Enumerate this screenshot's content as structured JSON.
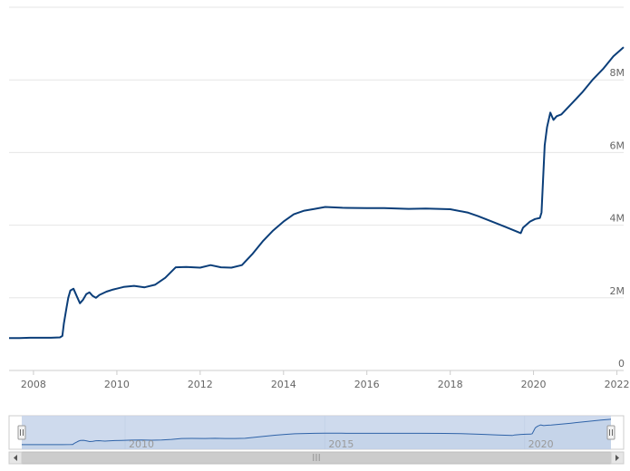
{
  "chart_data": {
    "type": "line",
    "title": "",
    "xlabel": "",
    "ylabel": "",
    "xlim": [
      "2007-06-01",
      "2022-03-01"
    ],
    "ylim": [
      0,
      10000000
    ],
    "y_ticks": [
      0,
      2000000,
      4000000,
      6000000,
      8000000
    ],
    "y_tick_labels": [
      "0",
      "2M",
      "4M",
      "6M",
      "8M"
    ],
    "x_ticks": [
      "2008-01-01",
      "2010-01-01",
      "2012-01-01",
      "2014-01-01",
      "2016-01-01",
      "2018-01-01",
      "2020-01-01",
      "2022-01-01"
    ],
    "x_tick_labels": [
      "2008",
      "2010",
      "2012",
      "2014",
      "2016",
      "2018",
      "2020",
      "2022"
    ],
    "y_axis_position": "right",
    "grid": true,
    "line_color": "#0b3e79",
    "series": [
      {
        "x": [
          "2007-06-01",
          "2007-09-01",
          "2007-12-01",
          "2008-03-01",
          "2008-06-01",
          "2008-08-20",
          "2008-09-10",
          "2008-09-24",
          "2008-10-15",
          "2008-11-01",
          "2008-11-19",
          "2008-12-17",
          "2009-01-14",
          "2009-02-11",
          "2009-03-11",
          "2009-04-08",
          "2009-05-06",
          "2009-06-03",
          "2009-07-01",
          "2009-08-01",
          "2009-10-01",
          "2009-12-01",
          "2010-03-01",
          "2010-06-01",
          "2010-09-01",
          "2010-12-01",
          "2011-03-01",
          "2011-06-01",
          "2011-09-01",
          "2012-01-01",
          "2012-04-01",
          "2012-07-01",
          "2012-10-01",
          "2013-01-01",
          "2013-04-01",
          "2013-07-01",
          "2013-10-01",
          "2014-01-01",
          "2014-04-01",
          "2014-07-01",
          "2014-10-01",
          "2015-01-01",
          "2015-06-01",
          "2016-01-01",
          "2016-06-01",
          "2017-01-01",
          "2017-06-01",
          "2018-01-01",
          "2018-06-01",
          "2018-09-01",
          "2019-01-01",
          "2019-05-01",
          "2019-09-11",
          "2019-10-01",
          "2019-12-01",
          "2020-01-15",
          "2020-02-26",
          "2020-03-11",
          "2020-03-25",
          "2020-04-08",
          "2020-04-29",
          "2020-05-27",
          "2020-06-10",
          "2020-06-24",
          "2020-07-22",
          "2020-09-01",
          "2020-12-01",
          "2021-03-01",
          "2021-06-01",
          "2021-09-01",
          "2021-12-01",
          "2022-03-01"
        ],
        "values": [
          890000,
          890000,
          900000,
          900000,
          900000,
          910000,
          950000,
          1300000,
          1700000,
          2000000,
          2200000,
          2250000,
          2050000,
          1850000,
          1950000,
          2100000,
          2150000,
          2050000,
          2000000,
          2080000,
          2170000,
          2230000,
          2300000,
          2330000,
          2290000,
          2360000,
          2550000,
          2840000,
          2850000,
          2830000,
          2900000,
          2840000,
          2830000,
          2900000,
          3200000,
          3550000,
          3850000,
          4100000,
          4300000,
          4400000,
          4450000,
          4500000,
          4480000,
          4470000,
          4470000,
          4450000,
          4460000,
          4440000,
          4350000,
          4250000,
          4100000,
          3950000,
          3780000,
          3930000,
          4100000,
          4170000,
          4200000,
          4350000,
          5250000,
          6200000,
          6700000,
          7100000,
          7000000,
          6900000,
          7000000,
          7050000,
          7350000,
          7650000,
          8000000,
          8300000,
          8650000,
          8900000
        ]
      }
    ],
    "navigator": {
      "labels": [
        "2010",
        "2015",
        "2020"
      ],
      "range": [
        "2007-06-01",
        "2022-03-01"
      ],
      "scrollbar_grip": "III"
    }
  }
}
